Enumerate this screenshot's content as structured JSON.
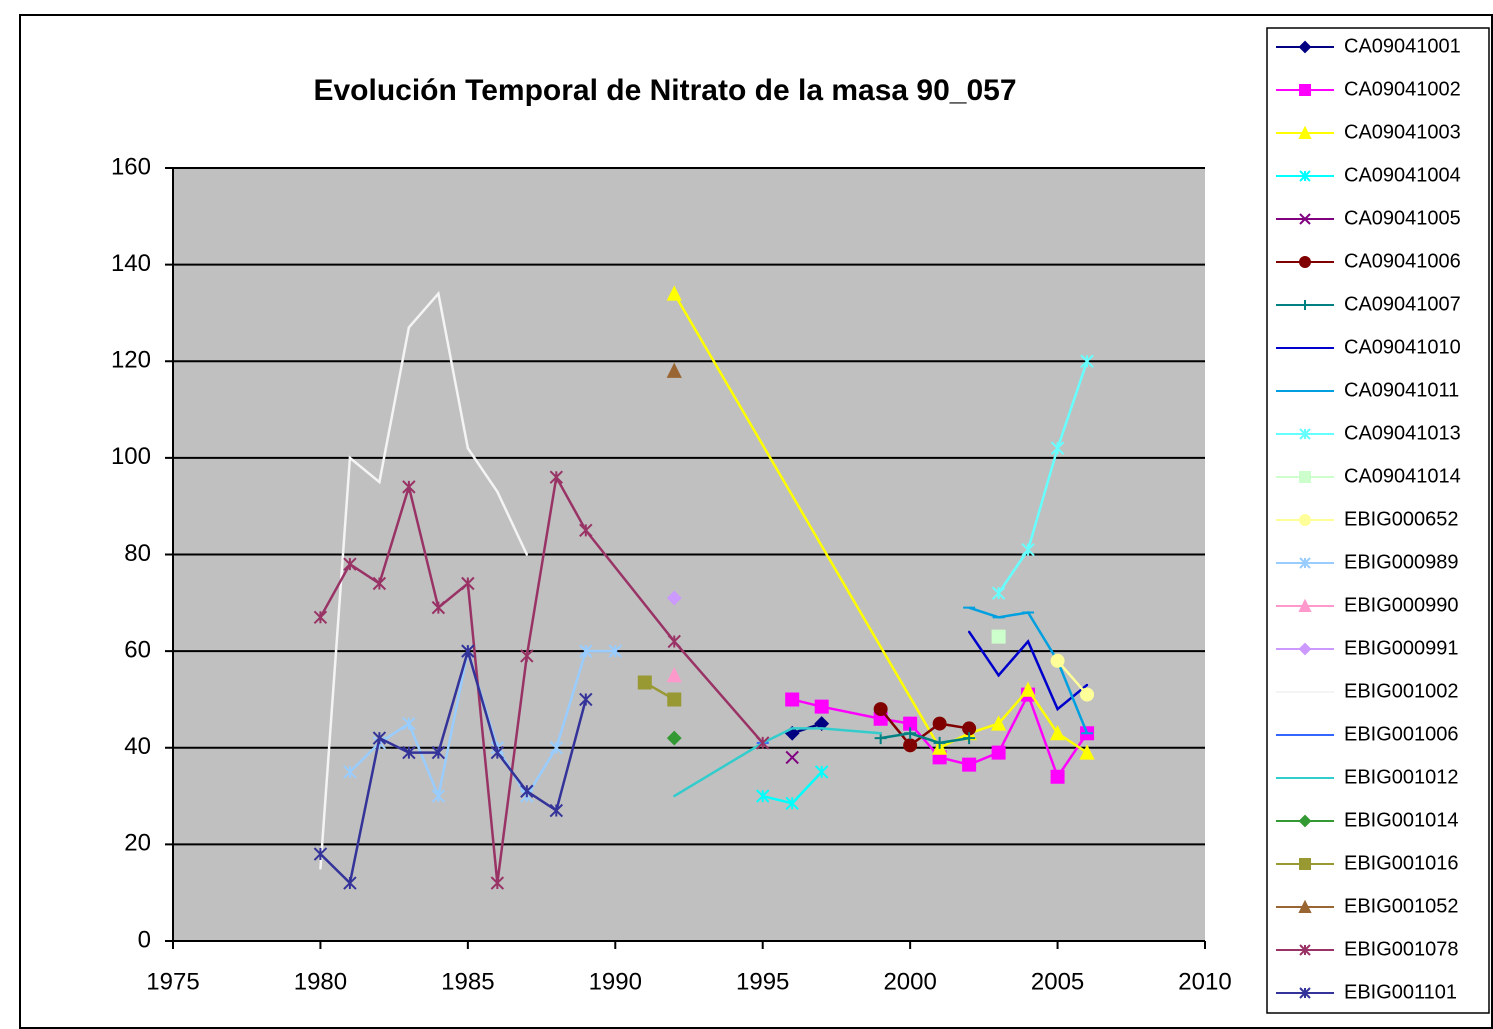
{
  "chart_data": {
    "type": "line",
    "title": "Evolución Temporal de Nitrato de la masa 90_057",
    "xlim": [
      1975,
      2010
    ],
    "xticks": [
      1975,
      1980,
      1985,
      1990,
      1995,
      2000,
      2005,
      2010
    ],
    "ylim": [
      0,
      160
    ],
    "yticks": [
      0,
      20,
      40,
      60,
      80,
      100,
      120,
      140,
      160
    ],
    "grid": true,
    "legend": "right",
    "background": "#c0c0c0",
    "series": [
      {
        "name": "CA09041001",
        "color": "#000080",
        "marker": "diamond",
        "x": [
          1996,
          1997
        ],
        "values": [
          43,
          45
        ]
      },
      {
        "name": "CA09041002",
        "color": "#ff00ff",
        "marker": "square",
        "x": [
          1996,
          1997,
          1999,
          2000,
          2001,
          2002,
          2003,
          2004,
          2005,
          2006
        ],
        "values": [
          50,
          48.5,
          46,
          45,
          38,
          36.5,
          39,
          51,
          34,
          43
        ]
      },
      {
        "name": "CA09041003",
        "color": "#ffff00",
        "marker": "triangle",
        "x": [
          1992,
          2001,
          2002,
          2003,
          2004,
          2005,
          2006
        ],
        "values": [
          134,
          40,
          43,
          45,
          52,
          43,
          39
        ]
      },
      {
        "name": "CA09041004",
        "color": "#00ffff",
        "marker": "star",
        "x": [
          1995,
          1996,
          1997
        ],
        "values": [
          30,
          28.5,
          35
        ]
      },
      {
        "name": "CA09041005",
        "color": "#800080",
        "marker": "x",
        "x": [
          1996
        ],
        "values": [
          38
        ]
      },
      {
        "name": "CA09041006",
        "color": "#800000",
        "marker": "circle",
        "x": [
          1999,
          2000,
          2001,
          2002
        ],
        "values": [
          48,
          40.5,
          45,
          44
        ]
      },
      {
        "name": "CA09041007",
        "color": "#008080",
        "marker": "plus",
        "x": [
          1999,
          2000,
          2001,
          2002
        ],
        "values": [
          42,
          43,
          41,
          42
        ]
      },
      {
        "name": "CA09041010",
        "color": "#0000cc",
        "marker": "none",
        "x": [
          2002,
          2003,
          2004,
          2005,
          2006
        ],
        "values": [
          64,
          55,
          62,
          48,
          53
        ]
      },
      {
        "name": "CA09041011",
        "color": "#00a0e0",
        "marker": "dash",
        "x": [
          2002,
          2003,
          2004,
          2005,
          2006
        ],
        "values": [
          69,
          67,
          68,
          58,
          43
        ]
      },
      {
        "name": "CA09041013",
        "color": "#66ffff",
        "marker": "star",
        "x": [
          2003,
          2004,
          2005,
          2006
        ],
        "values": [
          72,
          81,
          102,
          120
        ]
      },
      {
        "name": "CA09041014",
        "color": "#ccffcc",
        "marker": "square",
        "x": [
          2003
        ],
        "values": [
          63
        ]
      },
      {
        "name": "EBIG000652",
        "color": "#ffff99",
        "marker": "circle",
        "x": [
          2005,
          2006
        ],
        "values": [
          58,
          51
        ]
      },
      {
        "name": "EBIG000989",
        "color": "#99ccff",
        "marker": "star",
        "x": [
          1981,
          1982,
          1983,
          1984,
          1985,
          1986,
          1987,
          1988,
          1989,
          1990
        ],
        "values": [
          35,
          41,
          45,
          30,
          60,
          40,
          30,
          40,
          60,
          60
        ]
      },
      {
        "name": "EBIG000990",
        "color": "#ff99cc",
        "marker": "triangle",
        "x": [
          1992
        ],
        "values": [
          55
        ]
      },
      {
        "name": "EBIG000991",
        "color": "#cc99ff",
        "marker": "diamond",
        "x": [
          1992
        ],
        "values": [
          71
        ]
      },
      {
        "name": "EBIG001002",
        "color": "#f4f4f4",
        "marker": "none",
        "x": [
          1980,
          1981,
          1982,
          1983,
          1984,
          1985,
          1986,
          1987
        ],
        "values": [
          15,
          100,
          95,
          127,
          134,
          102,
          93,
          80
        ]
      },
      {
        "name": "EBIG001006",
        "color": "#3366ff",
        "marker": "dash",
        "x": [
          1995
        ],
        "values": [
          41
        ]
      },
      {
        "name": "EBIG001012",
        "color": "#33cccc",
        "marker": "none",
        "x": [
          1992,
          1995,
          1996,
          1997,
          1999
        ],
        "values": [
          30,
          41,
          44,
          44,
          43
        ]
      },
      {
        "name": "EBIG001014",
        "color": "#339933",
        "marker": "diamond",
        "x": [
          1992
        ],
        "values": [
          42
        ]
      },
      {
        "name": "EBIG001016",
        "color": "#999933",
        "marker": "square",
        "x": [
          1991,
          1992
        ],
        "values": [
          53.5,
          50
        ]
      },
      {
        "name": "EBIG001052",
        "color": "#996633",
        "marker": "triangle",
        "x": [
          1992
        ],
        "values": [
          118
        ]
      },
      {
        "name": "EBIG001078",
        "color": "#993366",
        "marker": "star",
        "x": [
          1980,
          1981,
          1982,
          1983,
          1984,
          1985,
          1986,
          1987,
          1988,
          1989,
          1992,
          1995
        ],
        "values": [
          67,
          78,
          74,
          94,
          69,
          74,
          12,
          59,
          96,
          85,
          62,
          41
        ]
      },
      {
        "name": "EBIG001101",
        "color": "#333399",
        "marker": "star",
        "x": [
          1980,
          1981,
          1982,
          1983,
          1984,
          1985,
          1986,
          1987,
          1988,
          1989
        ],
        "values": [
          18,
          12,
          42,
          39,
          39,
          60,
          39,
          31,
          27,
          50
        ]
      }
    ]
  }
}
